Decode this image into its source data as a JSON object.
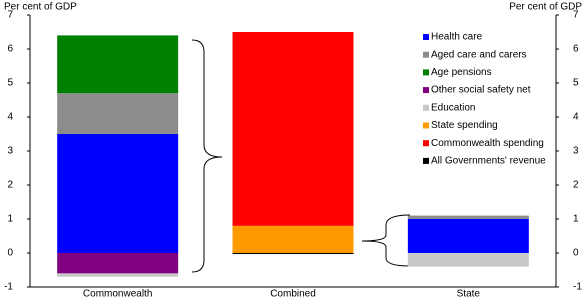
{
  "chart_data": {
    "type": "stacked_bar",
    "y_label": "Per cent of GDP",
    "y2_label": "Per cent of GDP",
    "categories": [
      "Commonwealth",
      "Combined",
      "State"
    ],
    "series": [
      {
        "name": "Health care",
        "color": "#0000ff",
        "values": [
          3.5,
          null,
          1.0
        ]
      },
      {
        "name": "Aged care and carers",
        "color": "#8c8c8c",
        "values": [
          1.2,
          null,
          0.1
        ]
      },
      {
        "name": "Age pensions",
        "color": "#008000",
        "values": [
          1.7,
          null,
          null
        ]
      },
      {
        "name": "Other social safety net",
        "color": "#800080",
        "values": [
          -0.6,
          null,
          null
        ]
      },
      {
        "name": "Education",
        "color": "#c8c8c8",
        "values": [
          -0.1,
          null,
          -0.4
        ]
      },
      {
        "name": "State spending",
        "color": "#ff9900",
        "values": [
          null,
          0.8,
          null
        ]
      },
      {
        "name": "Commonwealth spending",
        "color": "#ff0000",
        "values": [
          null,
          5.7,
          null
        ]
      },
      {
        "name": "All Governments' revenue",
        "color": "#000000",
        "values": [
          null,
          -0.03,
          null
        ]
      }
    ],
    "ylim": [
      -1,
      7
    ],
    "yticks": [
      -1,
      0,
      1,
      2,
      3,
      4,
      5,
      6,
      7
    ],
    "y2lim": [
      -1,
      7
    ],
    "y2ticks": [
      -1,
      0,
      1,
      2,
      3,
      4,
      5,
      6,
      7
    ],
    "legend": "upper right"
  }
}
